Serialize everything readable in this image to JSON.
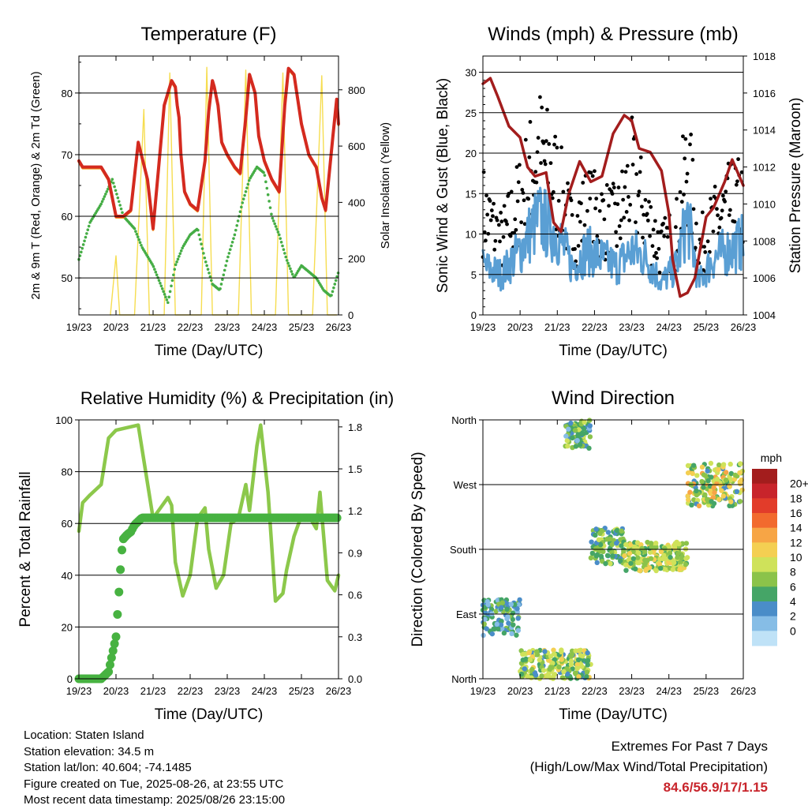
{
  "chart_data": [
    {
      "type": "line",
      "title": "Temperature (F)",
      "xlabel": "Time (Day/UTC)",
      "ylabel": "2m & 9m T (Red, Orange) & 2m Td (Green)",
      "y2label": "Solar Insolation (Yellow)",
      "x_ticks": [
        "19/23",
        "20/23",
        "21/23",
        "22/23",
        "23/23",
        "24/23",
        "25/23",
        "26/23"
      ],
      "ylim": [
        44,
        86
      ],
      "y_ticks": [
        50,
        60,
        70,
        80
      ],
      "y2lim": [
        0,
        920
      ],
      "y2_ticks": [
        0,
        200,
        400,
        600,
        800
      ],
      "grid": "horizontal",
      "colors": {
        "t2m": "#d42a1f",
        "t9m": "#f39a1e",
        "td": "#45ad45",
        "solar": "#f6dd50"
      },
      "series": [
        {
          "key": "t2m",
          "x": [
            0,
            0.1,
            0.2,
            0.4,
            0.6,
            0.8,
            1.0,
            1.2,
            1.4,
            1.6,
            1.85,
            2.0,
            2.15,
            2.3,
            2.5,
            2.6,
            2.65,
            2.7,
            2.75,
            2.85,
            3.0,
            3.2,
            3.4,
            3.5,
            3.6,
            3.65,
            3.75,
            3.85,
            4.0,
            4.2,
            4.35,
            4.5,
            4.6,
            4.65,
            4.75,
            4.85,
            5.0,
            5.2,
            5.4,
            5.55,
            5.65,
            5.8,
            6.0,
            6.2,
            6.4,
            6.55,
            6.65,
            6.75,
            6.85,
            6.95,
            7.0
          ],
          "y": [
            69,
            68,
            68,
            68,
            68,
            66,
            60,
            60,
            61,
            72,
            66,
            58,
            68,
            78,
            82,
            81,
            78,
            76,
            70,
            64,
            62,
            61,
            69,
            77,
            82,
            81,
            78,
            72,
            70,
            68,
            67,
            76,
            83,
            82,
            80,
            73,
            69,
            66,
            64,
            78,
            84,
            83,
            75,
            70,
            68,
            63,
            61,
            67,
            73,
            79,
            75
          ]
        },
        {
          "key": "td",
          "x": [
            0,
            0.3,
            0.6,
            0.9,
            1.2,
            1.5,
            1.7,
            2.0,
            2.2,
            2.4,
            2.6,
            2.8,
            3.0,
            3.2,
            3.4,
            3.6,
            3.8,
            4.0,
            4.2,
            4.4,
            4.6,
            4.8,
            5.0,
            5.2,
            5.4,
            5.6,
            5.8,
            6.0,
            6.2,
            6.4,
            6.6,
            6.8,
            7.0
          ],
          "y": [
            53,
            59,
            62,
            66,
            60,
            58,
            55,
            52,
            49,
            46,
            52,
            55,
            57,
            58,
            53,
            49,
            48,
            53,
            57,
            62,
            66,
            68,
            67,
            60,
            57,
            53,
            50,
            52,
            51,
            50,
            48,
            47,
            51
          ]
        },
        {
          "key": "solar",
          "axis": "y2",
          "x": [
            0.85,
            1.0,
            1.1,
            1.25,
            1.5,
            1.75,
            1.9,
            2.3,
            2.45,
            2.6,
            2.9,
            3.3,
            3.45,
            3.6,
            3.9,
            4.3,
            4.5,
            4.65,
            4.9,
            5.3,
            5.5,
            5.65,
            5.9,
            6.3,
            6.55,
            6.7,
            6.95
          ],
          "y": [
            0,
            210,
            0,
            0,
            0,
            730,
            0,
            0,
            860,
            0,
            0,
            0,
            880,
            0,
            0,
            0,
            870,
            0,
            0,
            0,
            860,
            0,
            0,
            0,
            850,
            0,
            0
          ]
        }
      ]
    },
    {
      "type": "scatter",
      "title": "Winds (mph) & Pressure (mb)",
      "xlabel": "Time (Day/UTC)",
      "ylabel": "Sonic Wind & Gust (Blue, Black)",
      "y2label": "Station Pressure (Maroon)",
      "x_ticks": [
        "19/23",
        "20/23",
        "21/23",
        "22/23",
        "23/23",
        "24/23",
        "25/23",
        "26/23"
      ],
      "ylim": [
        0,
        32
      ],
      "y_ticks": [
        0,
        5,
        10,
        15,
        20,
        25,
        30
      ],
      "y2lim": [
        1004,
        1018
      ],
      "y2_ticks": [
        1004,
        1006,
        1008,
        1010,
        1012,
        1014,
        1016,
        1018
      ],
      "grid": "horizontal",
      "colors": {
        "wind": "#5a9fd4",
        "gust": "#000000",
        "pressure": "#a31d1d"
      },
      "series": [
        {
          "key": "wind",
          "x": [
            0,
            0.5,
            1.0,
            1.5,
            2.0,
            2.4,
            2.8,
            3.2,
            3.6,
            4.0,
            4.4,
            4.8,
            5.2,
            5.5,
            5.8,
            6.2,
            6.6,
            7.0
          ],
          "y": [
            6,
            5,
            8,
            12,
            10,
            6,
            8,
            7,
            6,
            8,
            7,
            4,
            6,
            12,
            4,
            7,
            8,
            9
          ]
        },
        {
          "key": "gust",
          "x": [
            0,
            0.5,
            1.0,
            1.5,
            2.0,
            2.4,
            2.8,
            3.2,
            3.6,
            4.0,
            4.4,
            4.8,
            5.2,
            5.5,
            5.8,
            6.2,
            6.6,
            7.0
          ],
          "y": [
            13,
            9,
            14,
            20,
            16,
            10,
            13,
            12,
            11,
            17,
            12,
            8,
            10,
            19,
            8,
            11,
            13,
            14
          ]
        },
        {
          "key": "pressure",
          "axis": "y2",
          "x": [
            0,
            0.2,
            0.4,
            0.7,
            1.0,
            1.2,
            1.4,
            1.7,
            1.9,
            2.1,
            2.3,
            2.6,
            2.9,
            3.2,
            3.5,
            3.8,
            4.0,
            4.2,
            4.5,
            4.8,
            5.0,
            5.1,
            5.3,
            5.5,
            5.7,
            6.0,
            6.2,
            6.5,
            6.7,
            7.0
          ],
          "y": [
            1016.5,
            1016.8,
            1015.8,
            1014.2,
            1013.6,
            1012.0,
            1011.5,
            1011.7,
            1009.0,
            1008.5,
            1010.5,
            1012.3,
            1011.2,
            1011.5,
            1013.8,
            1014.8,
            1014.5,
            1013.0,
            1012.8,
            1011.8,
            1009.5,
            1007.0,
            1005.0,
            1005.2,
            1006.0,
            1009.3,
            1009.8,
            1011.2,
            1012.4,
            1011.0
          ]
        }
      ]
    },
    {
      "type": "line",
      "title": "Relative Humidity (%) & Precipitation (in)",
      "xlabel": "Time (Day/UTC)",
      "ylabel": "Percent & Total Rainfall",
      "x_ticks": [
        "19/23",
        "20/23",
        "21/23",
        "22/23",
        "23/23",
        "24/23",
        "25/23",
        "26/23"
      ],
      "ylim": [
        0,
        100
      ],
      "y_ticks": [
        0,
        20,
        40,
        60,
        80,
        100
      ],
      "y2lim": [
        0,
        1.85
      ],
      "y2_ticks": [
        "0.0",
        "0.3",
        "0.6",
        "0.9",
        "1.2",
        "1.5",
        "1.8"
      ],
      "grid": "horizontal",
      "colors": {
        "rh": "#8cc84b",
        "precip": "#47b241"
      },
      "series": [
        {
          "key": "rh",
          "x": [
            0,
            0.1,
            0.3,
            0.6,
            0.8,
            1.0,
            1.3,
            1.6,
            1.8,
            2.0,
            2.2,
            2.4,
            2.5,
            2.6,
            2.8,
            3.0,
            3.2,
            3.4,
            3.5,
            3.7,
            3.9,
            4.1,
            4.3,
            4.5,
            4.6,
            4.8,
            4.9,
            5.1,
            5.3,
            5.5,
            5.6,
            5.8,
            6.0,
            6.2,
            6.4,
            6.5,
            6.7,
            6.9,
            7.0
          ],
          "y": [
            57,
            68,
            71,
            75,
            93,
            96,
            97,
            98,
            80,
            62,
            66,
            70,
            67,
            45,
            32,
            40,
            62,
            66,
            50,
            35,
            40,
            60,
            62,
            75,
            65,
            90,
            98,
            72,
            30,
            33,
            42,
            55,
            63,
            63,
            58,
            72,
            38,
            34,
            40
          ]
        },
        {
          "key": "precip",
          "x": [
            0,
            0.6,
            0.8,
            1.0,
            1.05,
            1.15,
            1.2,
            1.3,
            1.4,
            1.5,
            1.7,
            2.0,
            3.0,
            4.0,
            5.0,
            6.0,
            7.0
          ],
          "y": [
            0.0,
            0.0,
            0.05,
            0.3,
            0.5,
            0.9,
            1.0,
            1.03,
            1.05,
            1.1,
            1.15,
            1.15,
            1.15,
            1.15,
            1.15,
            1.15,
            1.15
          ]
        }
      ]
    },
    {
      "type": "scatter",
      "title": "Wind Direction",
      "xlabel": "Time (Day/UTC)",
      "ylabel": "Direction (Colored By Speed)",
      "x_ticks": [
        "19/23",
        "20/23",
        "21/23",
        "22/23",
        "23/23",
        "24/23",
        "25/23",
        "26/23"
      ],
      "y_ticks": [
        "North",
        "East",
        "South",
        "West",
        "North"
      ],
      "ylim": [
        0,
        360
      ],
      "grid": "horizontal",
      "colorbar": {
        "title": "mph",
        "labels": [
          "20+",
          "18",
          "16",
          "14",
          "12",
          "10",
          "8",
          "6",
          "4",
          "2",
          "0"
        ],
        "colors": [
          "#a31d1d",
          "#c8242b",
          "#e23c2a",
          "#f26a2e",
          "#f7a545",
          "#f4cf52",
          "#cfe25a",
          "#8bc34a",
          "#45a567",
          "#4a8dc8",
          "#86bde6",
          "#bfe2f7"
        ]
      },
      "groups": [
        {
          "x_range": [
            0,
            1.0
          ],
          "dir_range": [
            60,
            110
          ],
          "speed": [
            2,
            8
          ]
        },
        {
          "x_range": [
            1.0,
            2.9
          ],
          "dir_range": [
            0,
            40
          ],
          "speed": [
            4,
            12
          ]
        },
        {
          "x_range": [
            2.2,
            2.9
          ],
          "dir_range": [
            320,
            360
          ],
          "speed": [
            2,
            10
          ]
        },
        {
          "x_range": [
            2.9,
            3.8
          ],
          "dir_range": [
            160,
            210
          ],
          "speed": [
            4,
            10
          ]
        },
        {
          "x_range": [
            3.8,
            5.5
          ],
          "dir_range": [
            150,
            190
          ],
          "speed": [
            6,
            12
          ]
        },
        {
          "x_range": [
            5.5,
            7.0
          ],
          "dir_range": [
            240,
            300
          ],
          "speed": [
            4,
            14
          ]
        }
      ]
    }
  ],
  "info": {
    "location": "Location: Staten Island",
    "elevation": "Station elevation: 34.5 m",
    "latlon": "Station lat/lon: 40.604; -74.1485",
    "created": "Figure created on Tue, 2025-08-26, at 23:55 UTC",
    "recent": "Most recent data timestamp: 2025/08/26 23:15:00"
  },
  "extremes": {
    "title": "Extremes For Past 7 Days",
    "subtitle": "(High/Low/Max Wind/Total Precipitation)",
    "values": "84.6/56.9/17/1.15"
  }
}
